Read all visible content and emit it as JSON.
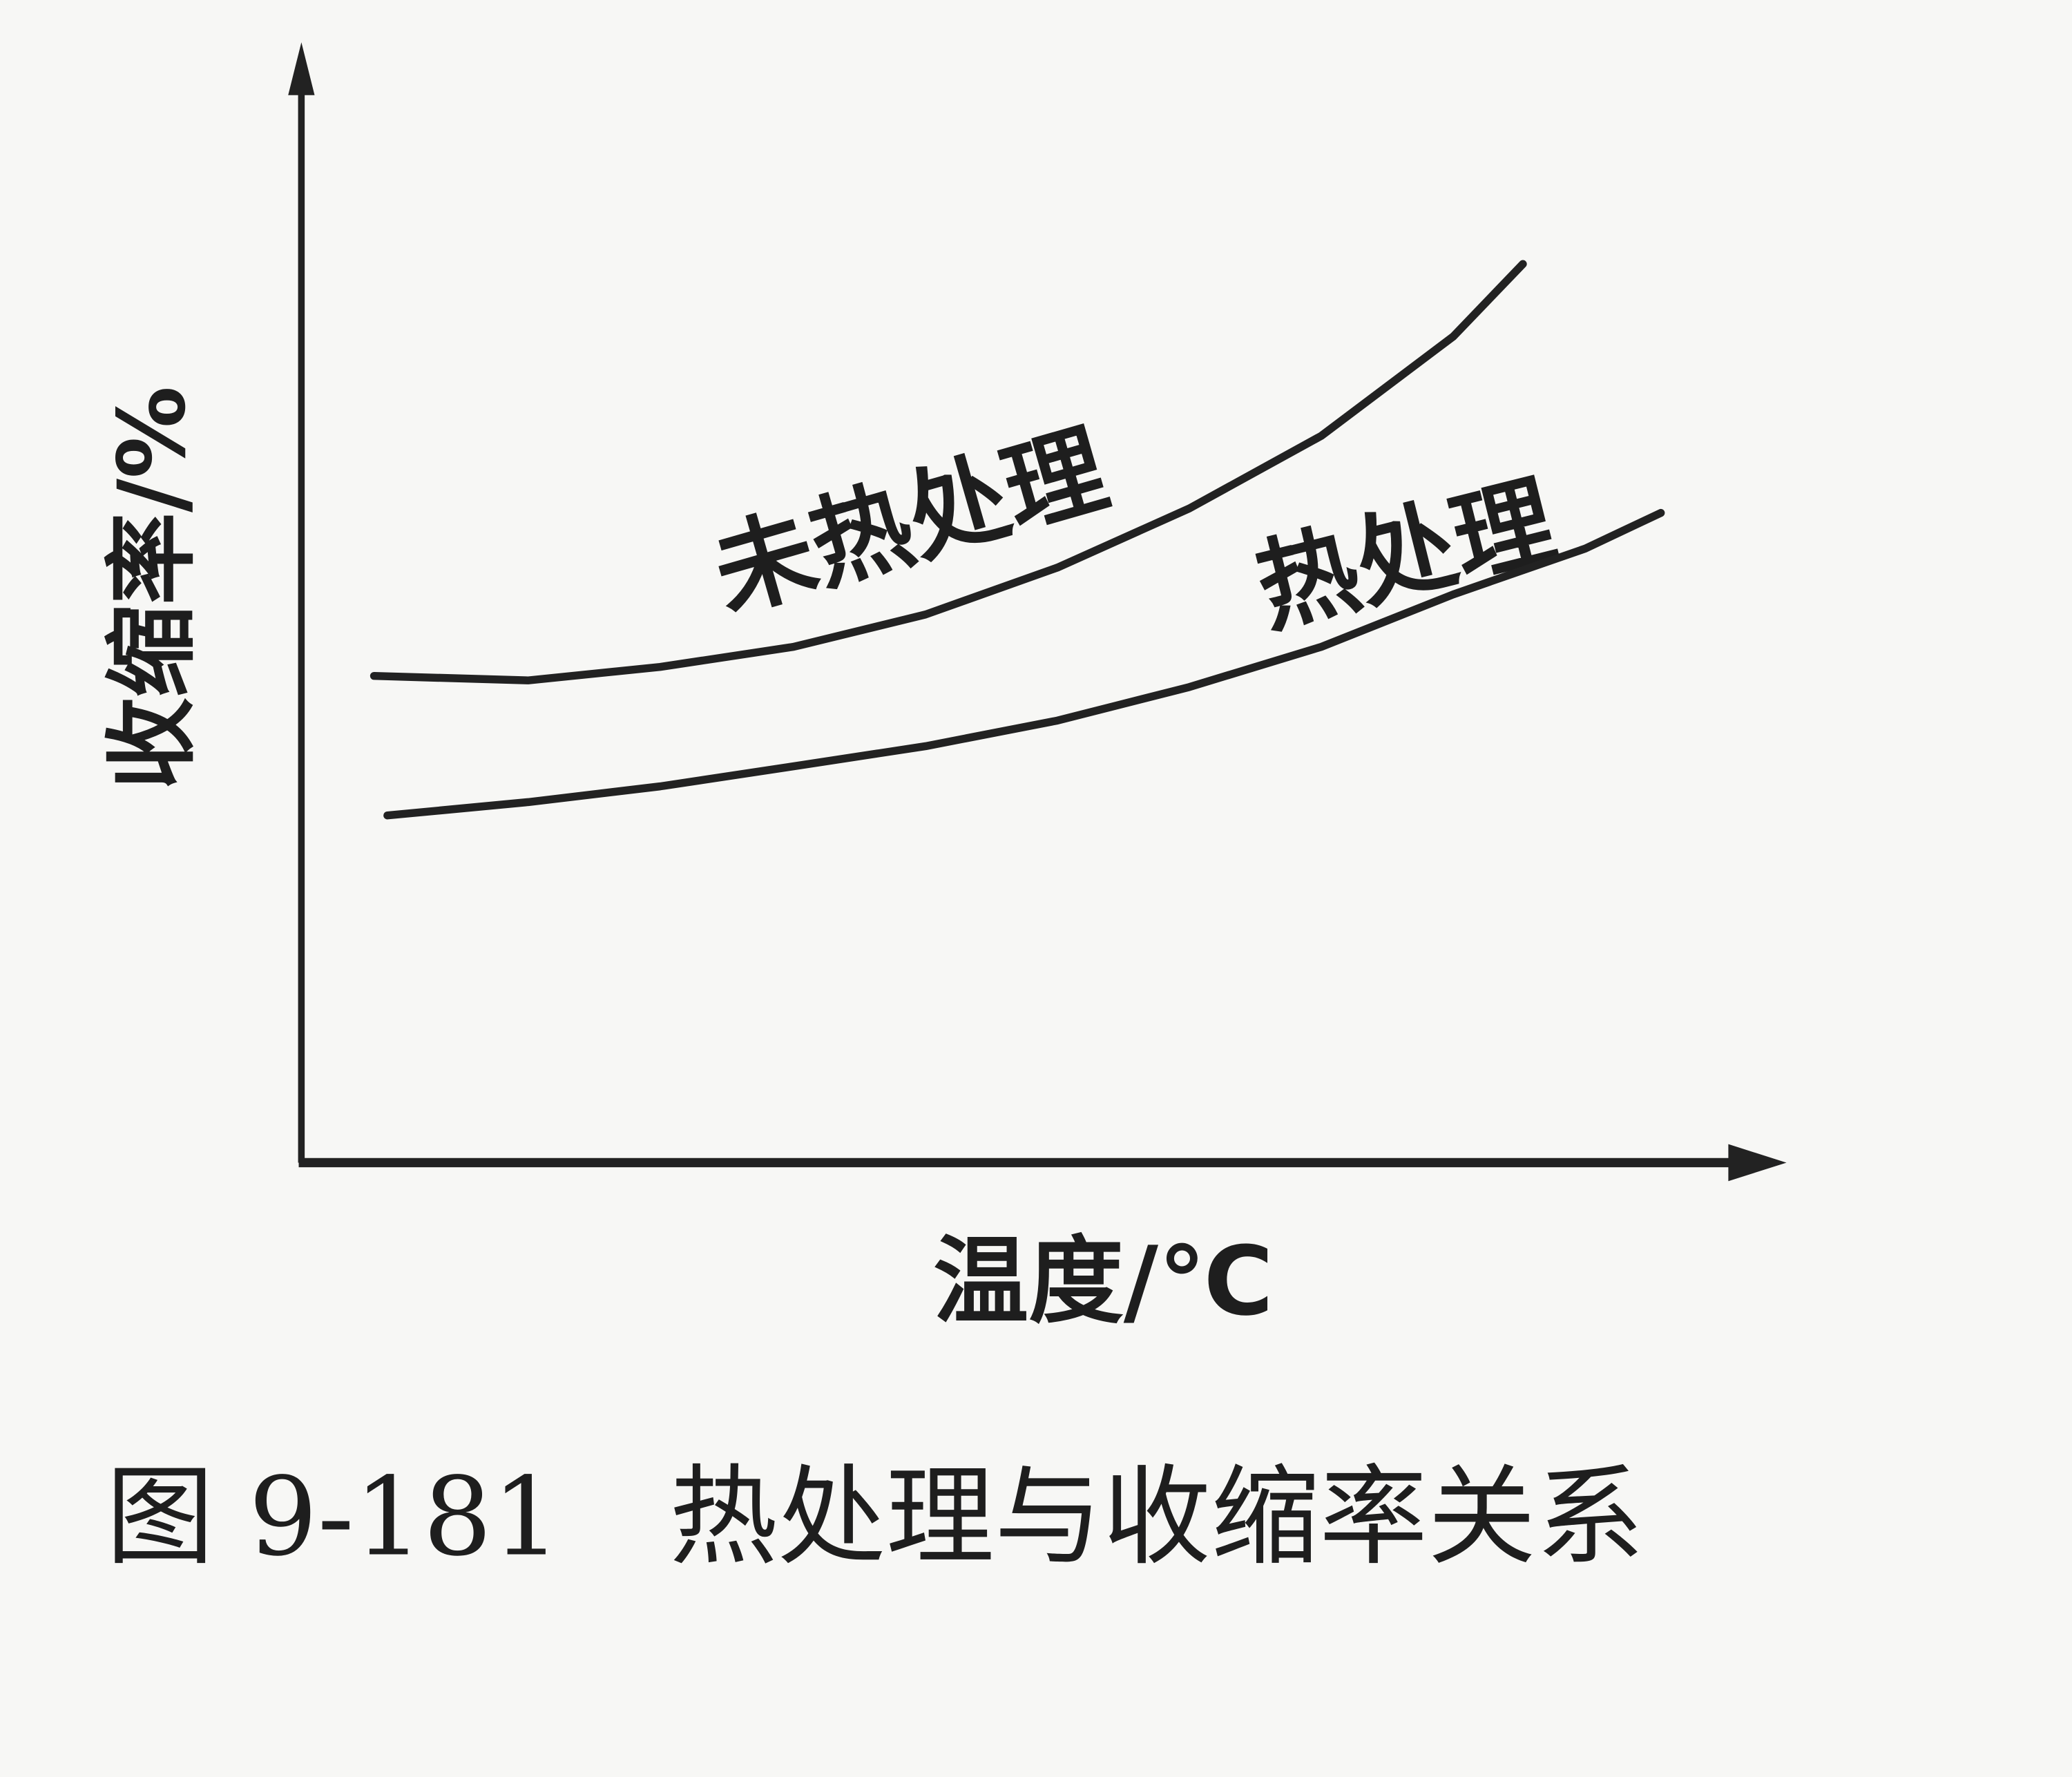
{
  "chart_data": {
    "type": "line",
    "caption": "图 9-181　热处理与收缩率关系",
    "x_label": "温度/℃",
    "y_label": "收缩率/%",
    "xlim": [
      0,
      100
    ],
    "ylim": [
      0,
      100
    ],
    "series": [
      {
        "name": "未热处理",
        "color": "#222222",
        "x": [
          4.9,
          15.3,
          24.2,
          33.2,
          42.1,
          51,
          59.9,
          68.8,
          77.7,
          82.4
        ],
        "values": [
          43.6,
          43.2,
          44.4,
          46.2,
          49.1,
          53.3,
          58.6,
          65.1,
          74,
          80.5
        ]
      },
      {
        "name": "热处理",
        "color": "#222222",
        "x": [
          5.8,
          15.3,
          24.2,
          33.2,
          42.1,
          51,
          59.9,
          68.8,
          77.7,
          86.6,
          91.7
        ],
        "values": [
          31.1,
          32.3,
          33.7,
          35.5,
          37.3,
          39.6,
          42.6,
          46.2,
          50.9,
          55,
          58.2
        ]
      }
    ]
  }
}
